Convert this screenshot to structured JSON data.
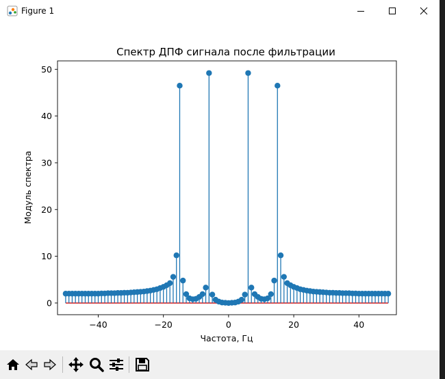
{
  "window": {
    "title": "Figure 1",
    "icons": [
      "figure-app-icon",
      "minimize-icon",
      "maximize-icon",
      "close-icon"
    ]
  },
  "toolbar": {
    "buttons": [
      "home-icon",
      "back-arrow-icon",
      "forward-arrow-icon",
      "pan-icon",
      "zoom-icon",
      "configure-subplots-icon",
      "save-icon"
    ]
  },
  "colors": {
    "stem": "#1f77b4",
    "baseline": "#d62728",
    "toolbar_bg": "#f0f0f0"
  },
  "chart_data": {
    "type": "stem",
    "title": "Спектр ДПФ сигнала после фильтрации",
    "xlabel": "Частота, Гц",
    "ylabel": "Модуль спектра",
    "xlim": [
      -52.5,
      51.5
    ],
    "ylim": [
      -2.5,
      51.8
    ],
    "xticks": [
      -40,
      -20,
      0,
      20,
      40
    ],
    "yticks": [
      0,
      10,
      20,
      30,
      40,
      50
    ],
    "xtick_labels": [
      "−40",
      "−20",
      "0",
      "20",
      "40"
    ],
    "ytick_labels": [
      "0",
      "10",
      "20",
      "30",
      "40",
      "50"
    ],
    "baseline": 0,
    "grid": false,
    "x": [
      -50,
      -49,
      -48,
      -47,
      -46,
      -45,
      -44,
      -43,
      -42,
      -41,
      -40,
      -39,
      -38,
      -37,
      -36,
      -35,
      -34,
      -33,
      -32,
      -31,
      -30,
      -29,
      -28,
      -27,
      -26,
      -25,
      -24,
      -23,
      -22,
      -21,
      -20,
      -19,
      -18,
      -17,
      -16,
      -15,
      -14,
      -13,
      -12,
      -11,
      -10,
      -9,
      -8,
      -7,
      -6,
      -5,
      -4,
      -3,
      -2,
      -1,
      0,
      1,
      2,
      3,
      4,
      5,
      6,
      7,
      8,
      9,
      10,
      11,
      12,
      13,
      14,
      15,
      16,
      17,
      18,
      19,
      20,
      21,
      22,
      23,
      24,
      25,
      26,
      27,
      28,
      29,
      30,
      31,
      32,
      33,
      34,
      35,
      36,
      37,
      38,
      39,
      40,
      41,
      42,
      43,
      44,
      45,
      46,
      47,
      48,
      49
    ],
    "y": [
      2.0,
      2.0,
      2.0,
      2.0,
      2.0,
      2.0,
      2.0,
      2.0,
      2.0,
      2.0,
      2.0,
      2.05,
      2.05,
      2.1,
      2.1,
      2.1,
      2.15,
      2.15,
      2.2,
      2.2,
      2.25,
      2.3,
      2.35,
      2.4,
      2.45,
      2.55,
      2.65,
      2.8,
      2.95,
      3.2,
      3.45,
      3.8,
      4.25,
      5.6,
      10.2,
      46.5,
      4.8,
      1.9,
      1.0,
      0.8,
      0.9,
      1.3,
      1.9,
      3.3,
      49.2,
      1.8,
      0.7,
      0.3,
      0.1,
      0.05,
      0.0,
      0.05,
      0.1,
      0.3,
      0.7,
      1.8,
      49.2,
      3.3,
      1.9,
      1.3,
      0.9,
      0.8,
      1.0,
      1.9,
      4.8,
      46.5,
      10.2,
      5.6,
      4.25,
      3.8,
      3.45,
      3.2,
      2.95,
      2.8,
      2.65,
      2.55,
      2.45,
      2.4,
      2.35,
      2.3,
      2.25,
      2.2,
      2.2,
      2.15,
      2.15,
      2.1,
      2.1,
      2.1,
      2.05,
      2.05,
      2.0,
      2.0,
      2.0,
      2.0,
      2.0,
      2.0,
      2.0,
      2.0,
      2.0,
      2.0
    ]
  }
}
